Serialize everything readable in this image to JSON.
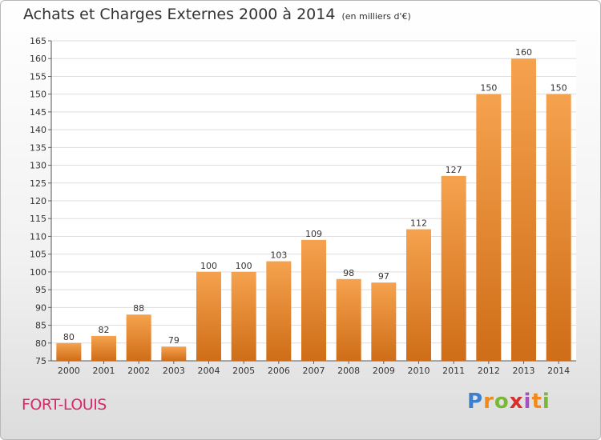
{
  "header": {
    "title": "Achats et Charges Externes 2000 à 2014",
    "unit": "(en milliers d'€)"
  },
  "footer": {
    "city": "FORT-LOUIS",
    "brand": "Proxiti"
  },
  "colors": {
    "bar_top": "#f5a24e",
    "bar_bottom": "#cf6d18",
    "grid": "#dddddd",
    "city": "#d62a6b"
  },
  "chart_data": {
    "type": "bar",
    "title": "Achats et Charges Externes 2000 à 2014",
    "subtitle": "(en milliers d'€)",
    "categories": [
      "2000",
      "2001",
      "2002",
      "2003",
      "2004",
      "2005",
      "2006",
      "2007",
      "2008",
      "2009",
      "2010",
      "2011",
      "2012",
      "2013",
      "2014"
    ],
    "values": [
      80,
      82,
      88,
      79,
      100,
      100,
      103,
      109,
      98,
      97,
      112,
      127,
      150,
      160,
      150
    ],
    "ylim": [
      75,
      165
    ],
    "yticks": [
      75,
      80,
      85,
      90,
      95,
      100,
      105,
      110,
      115,
      120,
      125,
      130,
      135,
      140,
      145,
      150,
      155,
      160,
      165
    ],
    "grid": true,
    "data_labels": true
  }
}
